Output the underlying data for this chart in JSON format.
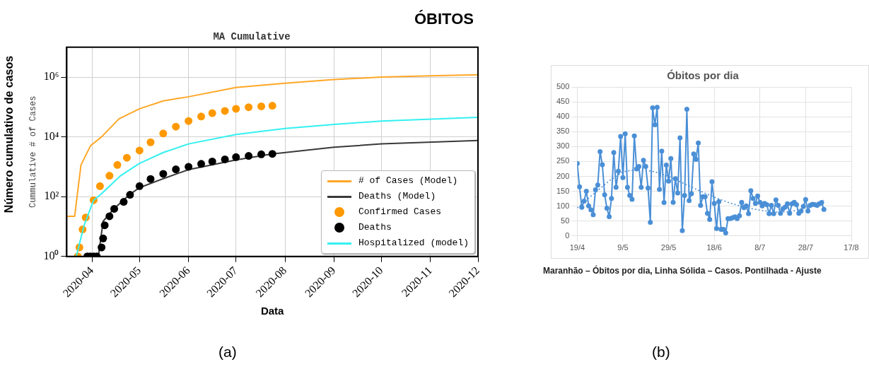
{
  "chart_data": [
    {
      "type": "line",
      "title": "MA Cumulative",
      "xlabel": "Data",
      "ylabel": "Cummulative # of Cases",
      "annotations": [
        "Número cumulativo de casos",
        "(a)"
      ],
      "xlim": [
        "2020-03-16",
        "2020-12-01"
      ],
      "xticks": [
        "2020-04",
        "2020-05",
        "2020-06",
        "2020-07",
        "2020-08",
        "2020-09",
        "2020-10",
        "2020-11",
        "2020-12"
      ],
      "ylim": [
        1,
        10000000
      ],
      "yticks": [
        {
          "value": 1,
          "label": "10⁰"
        },
        {
          "value": 100,
          "label": "10²"
        },
        {
          "value": 10000,
          "label": "10⁴"
        },
        {
          "value": 1000000,
          "label": "10⁶"
        }
      ],
      "log": "y",
      "grid": true,
      "legend": "bottom right",
      "series": [
        {
          "name": "# of Cases (Model)",
          "color": "#ffa726",
          "type": "line",
          "marker": "none",
          "x": [
            "2020-03-16",
            "2020-03-21",
            "2020-03-25",
            "2020-03-31",
            "2020-04-07",
            "2020-04-18",
            "2020-05-01",
            "2020-05-16",
            "2020-06-01",
            "2020-07-01",
            "2020-08-01",
            "2020-09-01",
            "2020-10-01",
            "2020-11-01",
            "2020-12-01"
          ],
          "values": [
            22,
            22,
            1150,
            5000,
            10000,
            40000,
            87000,
            160000,
            220000,
            450000,
            620000,
            830000,
            1000000,
            1100000,
            1200000
          ]
        },
        {
          "name": "Deaths (Model)",
          "color": "#3a3a3a",
          "type": "line",
          "marker": "none",
          "x": [
            "2020-04-05",
            "2020-04-08",
            "2020-04-15",
            "2020-04-25",
            "2020-05-01",
            "2020-05-16",
            "2020-06-01",
            "2020-07-01",
            "2020-07-24",
            "2020-09-01",
            "2020-10-01",
            "2020-12-01"
          ],
          "values": [
            1,
            15,
            40,
            120,
            200,
            400,
            800,
            1700,
            2700,
            4500,
            5800,
            7600
          ]
        },
        {
          "name": "Confirmed Cases",
          "color": "#ff9900",
          "type": "scatter",
          "marker": "circle",
          "x": [
            "2020-03-23",
            "2020-03-24",
            "2020-03-26",
            "2020-03-28",
            "2020-04-02",
            "2020-04-06",
            "2020-04-12",
            "2020-04-17",
            "2020-04-23",
            "2020-05-01",
            "2020-05-08",
            "2020-05-16",
            "2020-05-24",
            "2020-06-01",
            "2020-06-09",
            "2020-06-16",
            "2020-06-24",
            "2020-07-01",
            "2020-07-09",
            "2020-07-17",
            "2020-07-24"
          ],
          "values": [
            1,
            2,
            8,
            20,
            76,
            225,
            500,
            1150,
            2000,
            3500,
            6600,
            13000,
            22000,
            34000,
            48000,
            62000,
            74000,
            87000,
            98000,
            105000,
            110000
          ]
        },
        {
          "name": "Deaths",
          "color": "#000000",
          "type": "scatter",
          "marker": "circle",
          "x": [
            "2020-03-29",
            "2020-03-31",
            "2020-04-02",
            "2020-04-04",
            "2020-04-07",
            "2020-04-08",
            "2020-04-09",
            "2020-04-12",
            "2020-04-15",
            "2020-04-21",
            "2020-04-25",
            "2020-05-01",
            "2020-05-08",
            "2020-05-16",
            "2020-05-24",
            "2020-06-01",
            "2020-06-09",
            "2020-06-16",
            "2020-06-24",
            "2020-07-01",
            "2020-07-09",
            "2020-07-17",
            "2020-07-24"
          ],
          "values": [
            1,
            1,
            1,
            1,
            2,
            4,
            11,
            22,
            39,
            67,
            115,
            225,
            390,
            580,
            820,
            1000,
            1250,
            1500,
            1770,
            2100,
            2300,
            2600,
            2700
          ]
        },
        {
          "name": "Hospitalized (model)",
          "color": "#33f0f0",
          "type": "line",
          "marker": "none",
          "x": [
            "2020-03-22",
            "2020-03-27",
            "2020-04-02",
            "2020-04-07",
            "2020-04-19",
            "2020-05-01",
            "2020-05-16",
            "2020-06-01",
            "2020-07-01",
            "2020-08-01",
            "2020-09-01",
            "2020-10-01",
            "2020-12-01"
          ],
          "values": [
            1,
            11,
            76,
            125,
            500,
            1300,
            3000,
            5800,
            12000,
            19000,
            26000,
            34000,
            45000
          ]
        }
      ]
    },
    {
      "type": "line",
      "title": "Óbitos por dia",
      "annotations": [
        "ÓBITOS",
        "Maranhão – Óbitos por dia, Linha Sólida – Casos. Pontilhada - Ajuste",
        "(b)"
      ],
      "xlim": [
        "--04-19",
        "--08-17"
      ],
      "xticks": [
        {
          "value": "--04-19",
          "label": "19/4"
        },
        {
          "value": "--05-09",
          "label": "9/5"
        },
        {
          "value": "--05-29",
          "label": "29/5"
        },
        {
          "value": "--06-18",
          "label": "18/6"
        },
        {
          "value": "--07-08",
          "label": "8/7"
        },
        {
          "value": "--07-28",
          "label": "28/7"
        },
        {
          "value": "--08-17",
          "label": "17/8"
        }
      ],
      "ylim": [
        0,
        500
      ],
      "yticks": [
        0,
        50,
        100,
        150,
        200,
        250,
        300,
        350,
        400,
        450,
        500
      ],
      "grid": true,
      "marker": "circle",
      "x": [
        "--04-19",
        "--04-20",
        "--04-21",
        "--04-22",
        "--04-23",
        "--04-24",
        "--04-25",
        "--04-26",
        "--04-27",
        "--04-28",
        "--04-29",
        "--04-30",
        "--05-01",
        "--05-02",
        "--05-03",
        "--05-04",
        "--05-05",
        "--05-06",
        "--05-07",
        "--05-08",
        "--05-09",
        "--05-10",
        "--05-11",
        "--05-12",
        "--05-13",
        "--05-14",
        "--05-15",
        "--05-16",
        "--05-17",
        "--05-18",
        "--05-19",
        "--05-20",
        "--05-21",
        "--05-22",
        "--05-23",
        "--05-24",
        "--05-25",
        "--05-26",
        "--05-27",
        "--05-28",
        "--05-29",
        "--05-30",
        "--05-31",
        "--06-01",
        "--06-02",
        "--06-03",
        "--06-04",
        "--06-05",
        "--06-06",
        "--06-07",
        "--06-08",
        "--06-09",
        "--06-10",
        "--06-11",
        "--06-12",
        "--06-13",
        "--06-14",
        "--06-15",
        "--06-16",
        "--06-17",
        "--06-18",
        "--06-19",
        "--06-20",
        "--06-21",
        "--06-22",
        "--06-23",
        "--06-24",
        "--06-25",
        "--06-26",
        "--06-27",
        "--06-28",
        "--06-29",
        "--06-30",
        "--07-01",
        "--07-02",
        "--07-03",
        "--07-04",
        "--07-05",
        "--07-06",
        "--07-07",
        "--07-08",
        "--07-09",
        "--07-10",
        "--07-11",
        "--07-12",
        "--07-13",
        "--07-14",
        "--07-15",
        "--07-16",
        "--07-17",
        "--07-18",
        "--07-19",
        "--07-20",
        "--07-21",
        "--07-22",
        "--07-23",
        "--07-24",
        "--07-25",
        "--07-26",
        "--07-27",
        "--07-28",
        "--07-29",
        "--07-30",
        "--07-31",
        "--08-01",
        "--08-02",
        "--08-03",
        "--08-04",
        "--08-05"
      ],
      "series": [
        {
          "color": "#4a8fd6",
          "values": [
            243,
            165,
            96,
            117,
            150,
            101,
            88,
            71,
            155,
            171,
            283,
            239,
            138,
            93,
            65,
            126,
            280,
            163,
            217,
            334,
            196,
            343,
            163,
            136,
            123,
            336,
            225,
            233,
            163,
            254,
            233,
            161,
            46,
            430,
            373,
            432,
            156,
            285,
            112,
            238,
            184,
            260,
            113,
            192,
            144,
            329,
            18,
            136,
            425,
            119,
            142,
            275,
            257,
            312,
            103,
            132,
            132,
            76,
            55,
            182,
            109,
            25,
            115,
            22,
            22,
            10,
            58,
            58,
            61,
            64,
            58,
            68,
            113,
            95,
            101,
            75,
            152,
            126,
            109,
            134,
            113,
            101,
            109,
            105,
            75,
            103,
            75,
            121,
            103,
            76,
            91,
            97,
            108,
            76,
            108,
            113,
            105,
            76,
            84,
            99,
            122,
            84,
            103,
            106,
            105,
            103,
            108,
            112,
            89
          ]
        },
        {
          "color": "#4a8fd6",
          "type": "line",
          "marker": "none",
          "line_style": "dotted",
          "x": [
            "--04-19",
            "--04-26",
            "--05-03",
            "--05-09",
            "--05-16",
            "--05-23",
            "--05-29",
            "--06-05",
            "--06-12",
            "--06-18",
            "--06-25",
            "--07-02",
            "--07-09",
            "--07-16",
            "--07-22",
            "--07-28",
            "--08-05"
          ],
          "values": [
            94,
            140,
            185,
            215,
            225,
            215,
            200,
            175,
            150,
            130,
            110,
            95,
            85,
            80,
            82,
            95,
            120
          ]
        }
      ]
    }
  ]
}
